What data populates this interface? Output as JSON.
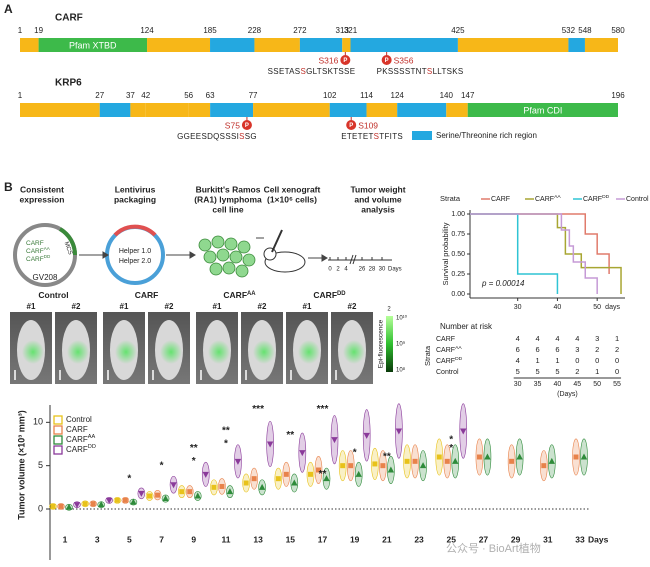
{
  "panel_a": {
    "label": "A",
    "phospho": "P",
    "proteins": [
      {
        "name": "CARF",
        "ticks": [
          1,
          19,
          124,
          185,
          228,
          272,
          313,
          321,
          425,
          532,
          548,
          580
        ],
        "segment_colors": [
          "#f7b718",
          "#3dba4a",
          "#f7b718",
          "#24a8e0",
          "#f7b718",
          "#24a8e0",
          "#f7b718",
          "#24a8e0",
          "#f7b718",
          "#24a8e0",
          "#f7b718"
        ],
        "domain": {
          "label": "Pfam XTBD",
          "start": 19,
          "end": 124
        },
        "sites": [
          {
            "label": "S316",
            "position": 316,
            "sequence": [
              "SSETAS",
              "S",
              "GLTSKTSSE"
            ]
          },
          {
            "label": "S356",
            "position": 356,
            "sequence": [
              "PKSSSSTNT",
              "S",
              "LLTSKS"
            ]
          }
        ]
      },
      {
        "name": "KRP6",
        "ticks": [
          1,
          27,
          37,
          42,
          56,
          63,
          77,
          102,
          114,
          124,
          140,
          147,
          196
        ],
        "segment_colors": [
          "#f7b718",
          "#24a8e0",
          "#f7b718",
          "#f7b718",
          "#f7b718",
          "#24a8e0",
          "#f7b718",
          "#24a8e0",
          "#f7b718",
          "#24a8e0",
          "#f7b718",
          "#3dba4a"
        ],
        "domain": {
          "label": "Pfam CDI",
          "start": 147,
          "end": 196
        },
        "sites": [
          {
            "label": "S75",
            "position": 75,
            "sequence": [
              "GGEESDQSSSI",
              "S",
              "SG"
            ]
          },
          {
            "label": "S109",
            "position": 109,
            "sequence": [
              "ETETET",
              "S",
              "TFITS"
            ]
          }
        ]
      }
    ],
    "legend": {
      "label": "Serine/Threonine rich region",
      "color": "#24a8e0"
    }
  },
  "panel_b": {
    "label": "B",
    "steps": [
      [
        "Consistent",
        "expression"
      ],
      [
        "Lentivirus",
        "packaging"
      ],
      [
        "Burkitt's Ramos",
        "(RA1) lymphoma",
        "cell line"
      ],
      [
        "Cell xenograft",
        "(1×10⁶ cells)"
      ],
      [
        "Tumor weight",
        "and volume",
        "analysis"
      ]
    ],
    "plasmid": {
      "inserts": [
        {
          "name": "CARF"
        },
        {
          "name": "CARF",
          "sup": "AA"
        },
        {
          "name": "CARF",
          "sup": "DD"
        }
      ],
      "mcs": "MCS",
      "vector": "GV208"
    },
    "helpers": [
      "Helper 1.0",
      "Helper 2.0"
    ],
    "timeline": [
      "0",
      "2",
      "4",
      "26",
      "28",
      "30",
      "Days"
    ],
    "imaging": {
      "groups": [
        {
          "name": "Control",
          "mice": [
            "#1",
            "#2"
          ]
        },
        {
          "name": "CARF",
          "mice": [
            "#1",
            "#2"
          ]
        },
        {
          "name": "CARF",
          "sup": "AA",
          "mice": [
            "#1",
            "#2"
          ]
        },
        {
          "name": "CARF",
          "sup": "DD",
          "mice": [
            "#1",
            "#2"
          ]
        }
      ],
      "colorbar": {
        "top": "2",
        "labels": [
          "10¹⁰",
          "10⁹",
          "10⁸"
        ],
        "title": "Epi-fluorescence"
      }
    }
  },
  "chart_data": [
    {
      "type": "line",
      "step": true,
      "legend_title": "Strata",
      "series": [
        {
          "name": "CARF",
          "color": "#e07b6c",
          "x": [
            18,
            47,
            50,
            53
          ],
          "values": [
            1,
            0.75,
            0.5,
            0.25
          ]
        },
        {
          "name": "CARF",
          "sup": "AA",
          "color": "#a8a632",
          "x": [
            18,
            40,
            42,
            46,
            56
          ],
          "values": [
            1,
            0.83,
            0.5,
            0.33,
            0
          ]
        },
        {
          "name": "CARF",
          "sup": "DD",
          "color": "#2fc4d4",
          "x": [
            18,
            30,
            40
          ],
          "values": [
            1,
            0.25,
            0
          ]
        },
        {
          "name": "Control",
          "color": "#c59ad6",
          "x": [
            18,
            41,
            43,
            44,
            47,
            50
          ],
          "values": [
            1,
            0.8,
            0.6,
            0.4,
            0.2,
            0
          ]
        }
      ],
      "xlim": [
        18,
        57
      ],
      "xticks": [
        30,
        40,
        50
      ],
      "xlabel": "days",
      "ylim": [
        -0.05,
        1.05
      ],
      "yticks": [
        {
          "value": 0,
          "label": "0.00"
        },
        {
          "value": 0.25,
          "label": "0.25"
        },
        {
          "value": 0.5,
          "label": "0.50"
        },
        {
          "value": 0.75,
          "label": "0.75"
        },
        {
          "value": 1,
          "label": "1.00"
        }
      ],
      "ylabel": "Survival probability",
      "annotation": "p = 0.00014",
      "risk_table": {
        "title": "Number at risk",
        "axis_label": "Strata",
        "x": [
          30,
          35,
          40,
          45,
          50,
          55
        ],
        "xlabel": "(Days)",
        "rows": [
          [
            4,
            4,
            4,
            4,
            3,
            1
          ],
          [
            6,
            6,
            6,
            3,
            2,
            2
          ],
          [
            4,
            1,
            1,
            0,
            0,
            0
          ],
          [
            5,
            5,
            5,
            2,
            1,
            0
          ]
        ]
      }
    },
    {
      "type": "scatter",
      "x": [
        1,
        3,
        5,
        7,
        9,
        11,
        13,
        15,
        17,
        19,
        21,
        23,
        25,
        27,
        29,
        31,
        33
      ],
      "xlabel": "Days",
      "ylim": [
        -1.5,
        12
      ],
      "yticks": [
        0,
        5,
        10
      ],
      "ylabel": "Tumor volume (×10³ mm³)",
      "series": [
        {
          "name": "Control",
          "color": "#e8c21a",
          "marker": "square",
          "values": [
            0.3,
            0.6,
            1.0,
            1.5,
            2.0,
            2.5,
            3.0,
            3.5,
            4.0,
            5.0,
            5.2,
            5.5,
            6.0,
            null,
            null,
            null,
            null
          ]
        },
        {
          "name": "CARF",
          "color": "#e8824a",
          "marker": "square",
          "values": [
            0.3,
            0.6,
            1.0,
            1.6,
            2.0,
            2.6,
            3.5,
            4.0,
            4.5,
            5.0,
            5.0,
            5.5,
            5.5,
            6.0,
            5.5,
            5.0,
            6.0
          ]
        },
        {
          "name": "CARF",
          "sup": "AA",
          "color": "#2e8b3a",
          "marker": "triangle",
          "values": [
            0.2,
            0.5,
            0.8,
            1.2,
            1.5,
            2.0,
            2.5,
            3.0,
            3.5,
            4.0,
            4.5,
            5.0,
            5.5,
            6.0,
            6.0,
            5.5,
            6.0
          ]
        },
        {
          "name": "CARF",
          "sup": "DD",
          "color": "#8a3a9a",
          "marker": "triangle-down",
          "values": [
            0.5,
            1.0,
            1.8,
            2.8,
            4.0,
            5.5,
            7.5,
            6.5,
            8.0,
            8.5,
            9.0,
            null,
            9.0,
            null,
            null,
            null,
            null
          ]
        }
      ],
      "annotations": [
        {
          "text": "*",
          "x": 5,
          "y": 3.5,
          "color": "#333333"
        },
        {
          "text": "*",
          "x": 7,
          "y": 5,
          "color": "#333333"
        },
        {
          "text": "*",
          "x": 9,
          "y": 5.5,
          "color": "#333333"
        },
        {
          "text": "**",
          "x": 9,
          "y": 7,
          "color": "#8a3a9a"
        },
        {
          "text": "*",
          "x": 11,
          "y": 7.5,
          "color": "#333333"
        },
        {
          "text": "**",
          "x": 11,
          "y": 9,
          "color": "#8a3a9a"
        },
        {
          "text": "***",
          "x": 13,
          "y": 11.5,
          "color": "#8a3a9a"
        },
        {
          "text": "**",
          "x": 15,
          "y": 8.5,
          "color": "#8a3a9a"
        },
        {
          "text": "***",
          "x": 17,
          "y": 11.5,
          "color": "#8a3a9a"
        },
        {
          "text": "**",
          "x": 17,
          "y": 4,
          "color": "#333333"
        },
        {
          "text": "*",
          "x": 19,
          "y": 6.5,
          "color": "#333333"
        },
        {
          "text": "**",
          "x": 21,
          "y": 6,
          "color": "#2e8b3a"
        },
        {
          "text": "*",
          "x": 25,
          "y": 8,
          "color": "#e8824a"
        },
        {
          "text": "*",
          "x": 25,
          "y": 7,
          "color": "#2e8b3a"
        }
      ]
    }
  ],
  "watermark": "公众号 · BioArt植物"
}
